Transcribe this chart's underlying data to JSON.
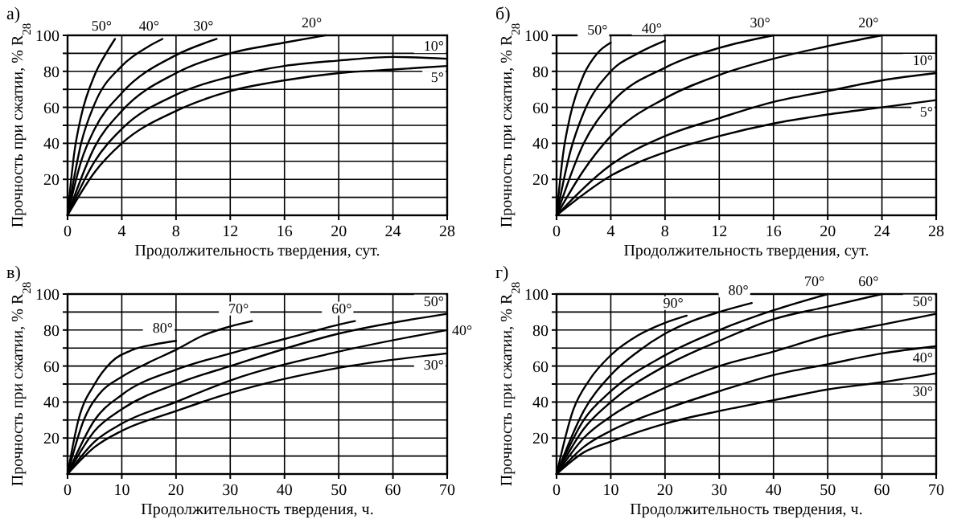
{
  "chart_data": [
    {
      "type": "line",
      "title": "а)",
      "xlabel": "Продолжительность твердения, сут.",
      "ylabel": "Прочность при сжатии, % R$_{28}$",
      "xlim": [
        0,
        28
      ],
      "xticks": [
        0,
        4,
        8,
        12,
        16,
        20,
        24,
        28
      ],
      "ylim": [
        0,
        100
      ],
      "yticks": [
        {
          "value": 10,
          "label": null
        },
        20,
        {
          "value": 30,
          "label": null
        },
        40,
        {
          "value": 50,
          "label": null
        },
        60,
        {
          "value": 70,
          "label": null
        },
        80,
        {
          "value": 90,
          "label": null
        },
        100
      ],
      "grid": true,
      "marker": "none",
      "line_style": "solid",
      "series": [
        {
          "name": "50°",
          "color": "#000000",
          "x": [
            0,
            0.5,
            1,
            2,
            3,
            3.5
          ],
          "values": [
            0,
            35,
            55,
            78,
            92,
            98
          ]
        },
        {
          "name": "40°",
          "color": "#000000",
          "x": [
            0,
            1,
            2,
            4,
            6,
            7
          ],
          "values": [
            0,
            40,
            62,
            83,
            94,
            98
          ]
        },
        {
          "name": "30°",
          "color": "#000000",
          "x": [
            0,
            1,
            2,
            4,
            8,
            11
          ],
          "values": [
            0,
            30,
            48,
            68,
            89,
            98
          ]
        },
        {
          "name": "20°",
          "color": "#000000",
          "x": [
            0,
            2,
            4,
            8,
            12,
            16,
            19
          ],
          "values": [
            0,
            38,
            58,
            79,
            90,
            96,
            100
          ]
        },
        {
          "name": "10°",
          "color": "#000000",
          "x": [
            0,
            2,
            4,
            8,
            12,
            16,
            20,
            24,
            28
          ],
          "values": [
            0,
            30,
            48,
            67,
            77,
            83,
            86,
            88,
            87
          ]
        },
        {
          "name": "5°",
          "color": "#000000",
          "x": [
            0,
            2,
            4,
            8,
            12,
            16,
            20,
            24,
            28
          ],
          "values": [
            0,
            24,
            40,
            58,
            69,
            75,
            79,
            81,
            83
          ]
        }
      ]
    },
    {
      "type": "line",
      "title": "б)",
      "xlabel": "Продолжительность твердения, сут.",
      "ylabel": "Прочность при сжатии, % R$_{28}$",
      "xlim": [
        0,
        28
      ],
      "xticks": [
        0,
        4,
        8,
        12,
        16,
        20,
        24,
        28
      ],
      "ylim": [
        0,
        100
      ],
      "yticks": [
        {
          "value": 10,
          "label": null
        },
        20,
        {
          "value": 30,
          "label": null
        },
        40,
        {
          "value": 50,
          "label": null
        },
        60,
        {
          "value": 70,
          "label": null
        },
        80,
        {
          "value": 90,
          "label": null
        },
        100
      ],
      "grid": true,
      "marker": "none",
      "line_style": "solid",
      "series": [
        {
          "name": "50°",
          "color": "#000000",
          "x": [
            0,
            0.5,
            1,
            2,
            3,
            4
          ],
          "values": [
            0,
            35,
            55,
            78,
            90,
            96
          ]
        },
        {
          "name": "40°",
          "color": "#000000",
          "x": [
            0,
            1,
            2,
            4,
            6,
            8
          ],
          "values": [
            0,
            35,
            57,
            80,
            90,
            97
          ]
        },
        {
          "name": "30°",
          "color": "#000000",
          "x": [
            0,
            2,
            4,
            8,
            12,
            16
          ],
          "values": [
            0,
            40,
            62,
            82,
            93,
            100
          ]
        },
        {
          "name": "20°",
          "color": "#000000",
          "x": [
            0,
            2,
            4,
            8,
            12,
            16,
            20,
            24
          ],
          "values": [
            0,
            25,
            44,
            65,
            78,
            87,
            94,
            100
          ]
        },
        {
          "name": "10°",
          "color": "#000000",
          "x": [
            0,
            4,
            8,
            12,
            16,
            20,
            24,
            28
          ],
          "values": [
            0,
            28,
            44,
            54,
            63,
            69,
            75,
            79
          ]
        },
        {
          "name": "5°",
          "color": "#000000",
          "x": [
            0,
            4,
            8,
            12,
            16,
            20,
            24,
            28
          ],
          "values": [
            0,
            22,
            35,
            44,
            51,
            56,
            60,
            64
          ]
        }
      ]
    },
    {
      "type": "line",
      "title": "в)",
      "xlabel": "Продолжительность твердения, ч.",
      "ylabel": "Прочность при сжатии, % R$_{28}$",
      "xlim": [
        0,
        70
      ],
      "xticks": [
        0,
        10,
        20,
        30,
        40,
        50,
        60,
        70
      ],
      "ylim": [
        0,
        100
      ],
      "yticks": [
        {
          "value": 10,
          "label": null
        },
        20,
        {
          "value": 30,
          "label": null
        },
        40,
        {
          "value": 50,
          "label": null
        },
        60,
        {
          "value": 70,
          "label": null
        },
        80,
        {
          "value": 90,
          "label": null
        },
        100
      ],
      "grid": true,
      "marker": "none",
      "line_style": "solid",
      "series": [
        {
          "name": "80°",
          "color": "#000000",
          "x": [
            0,
            2,
            5,
            8,
            12,
            16,
            20
          ],
          "values": [
            0,
            30,
            50,
            62,
            69,
            72,
            74
          ]
        },
        {
          "name": "70°",
          "color": "#000000",
          "x": [
            0,
            3,
            6,
            10,
            15,
            20,
            25,
            30,
            34
          ],
          "values": [
            0,
            30,
            45,
            54,
            62,
            69,
            77,
            82,
            85
          ]
        },
        {
          "name": "60°",
          "color": "#000000",
          "x": [
            0,
            5,
            10,
            20,
            30,
            40,
            50,
            53
          ],
          "values": [
            0,
            30,
            44,
            58,
            67,
            75,
            83,
            85
          ]
        },
        {
          "name": "50°",
          "color": "#000000",
          "x": [
            0,
            5,
            10,
            20,
            30,
            50,
            70
          ],
          "values": [
            0,
            24,
            36,
            50,
            60,
            78,
            89
          ]
        },
        {
          "name": "40°",
          "color": "#000000",
          "x": [
            0,
            5,
            10,
            20,
            30,
            50,
            70
          ],
          "values": [
            0,
            18,
            28,
            40,
            52,
            68,
            80
          ]
        },
        {
          "name": "30°",
          "color": "#000000",
          "x": [
            0,
            5,
            10,
            20,
            30,
            50,
            70
          ],
          "values": [
            0,
            15,
            24,
            35,
            45,
            59,
            67
          ]
        }
      ]
    },
    {
      "type": "line",
      "title": "г)",
      "xlabel": "Продолжительность твердения, ч.",
      "ylabel": "Прочность при сжатии, % R$_{28}$",
      "xlim": [
        0,
        70
      ],
      "xticks": [
        0,
        10,
        20,
        30,
        40,
        50,
        60,
        70
      ],
      "ylim": [
        0,
        100
      ],
      "yticks": [
        {
          "value": 10,
          "label": null
        },
        20,
        {
          "value": 30,
          "label": null
        },
        40,
        {
          "value": 50,
          "label": null
        },
        60,
        {
          "value": 70,
          "label": null
        },
        80,
        {
          "value": 90,
          "label": null
        },
        100
      ],
      "grid": true,
      "marker": "none",
      "line_style": "solid",
      "series": [
        {
          "name": "90°",
          "color": "#000000",
          "x": [
            0,
            3,
            6,
            10,
            15,
            20,
            24
          ],
          "values": [
            0,
            35,
            52,
            66,
            77,
            84,
            88
          ]
        },
        {
          "name": "80°",
          "color": "#000000",
          "x": [
            0,
            5,
            10,
            15,
            20,
            25,
            30,
            36
          ],
          "values": [
            0,
            35,
            55,
            68,
            78,
            85,
            90,
            95
          ]
        },
        {
          "name": "70°",
          "color": "#000000",
          "x": [
            0,
            5,
            10,
            20,
            30,
            40,
            50
          ],
          "values": [
            0,
            30,
            46,
            66,
            80,
            91,
            100
          ]
        },
        {
          "name": "60°",
          "color": "#000000",
          "x": [
            0,
            5,
            10,
            20,
            30,
            40,
            50,
            60
          ],
          "values": [
            0,
            25,
            40,
            60,
            74,
            86,
            93,
            100
          ]
        },
        {
          "name": "50°",
          "color": "#000000",
          "x": [
            0,
            5,
            10,
            20,
            30,
            40,
            50,
            60,
            70
          ],
          "values": [
            0,
            20,
            32,
            48,
            60,
            68,
            77,
            83,
            89
          ]
        },
        {
          "name": "40°",
          "color": "#000000",
          "x": [
            0,
            5,
            10,
            20,
            30,
            40,
            50,
            60,
            70
          ],
          "values": [
            0,
            15,
            24,
            36,
            46,
            55,
            61,
            67,
            71
          ]
        },
        {
          "name": "30°",
          "color": "#000000",
          "x": [
            0,
            5,
            10,
            20,
            30,
            40,
            50,
            60,
            70
          ],
          "values": [
            0,
            12,
            18,
            28,
            35,
            41,
            47,
            51,
            56
          ]
        }
      ]
    }
  ]
}
